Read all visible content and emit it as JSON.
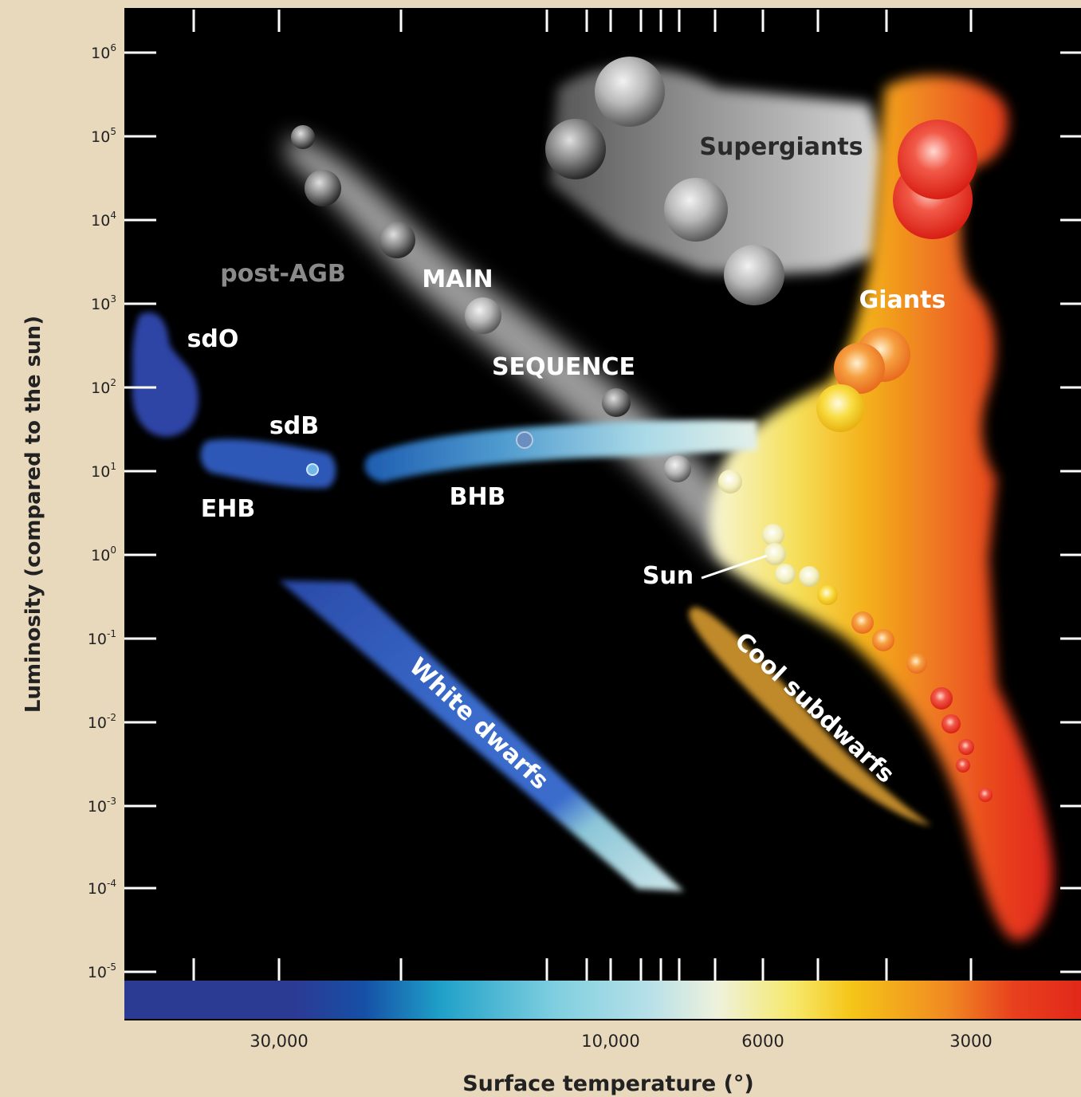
{
  "figure": {
    "ylabel": "Luminosity (compared to the sun)",
    "xlabel": "Surface temperature (°)",
    "y_ticks": [
      {
        "base": "10",
        "exp": "6"
      },
      {
        "base": "10",
        "exp": "5"
      },
      {
        "base": "10",
        "exp": "4"
      },
      {
        "base": "10",
        "exp": "3"
      },
      {
        "base": "10",
        "exp": "2"
      },
      {
        "base": "10",
        "exp": "1"
      },
      {
        "base": "10",
        "exp": "0"
      },
      {
        "base": "10",
        "exp": "-1"
      },
      {
        "base": "10",
        "exp": "-2"
      },
      {
        "base": "10",
        "exp": "-3"
      },
      {
        "base": "10",
        "exp": "-4"
      },
      {
        "base": "10",
        "exp": "-5"
      }
    ],
    "x_ticks": [
      "30,000",
      "10,000",
      "6000",
      "3000"
    ],
    "regions": {
      "supergiants": "Supergiants",
      "giants": "Giants",
      "post_agb": "post-AGB",
      "main": "MAIN",
      "sequence": "SEQUENCE",
      "sdo": "sdO",
      "sdb": "sdB",
      "ehb": "EHB",
      "bhb": "BHB",
      "sun": "Sun",
      "white_dwarfs": "White dwarfs",
      "cool_subdwarfs": "Cool subdwarfs"
    }
  },
  "colors": {
    "background": "#e8d9bd",
    "plot": "#000000",
    "grey_band": "#9a9a9a",
    "sd_blue": "#2e4aa8",
    "white_dwarf": "#3a66c4",
    "cool_subdwarf": "#c08a2a",
    "giant_red": "#e8301c",
    "giant_yellow": "#f5c518"
  }
}
